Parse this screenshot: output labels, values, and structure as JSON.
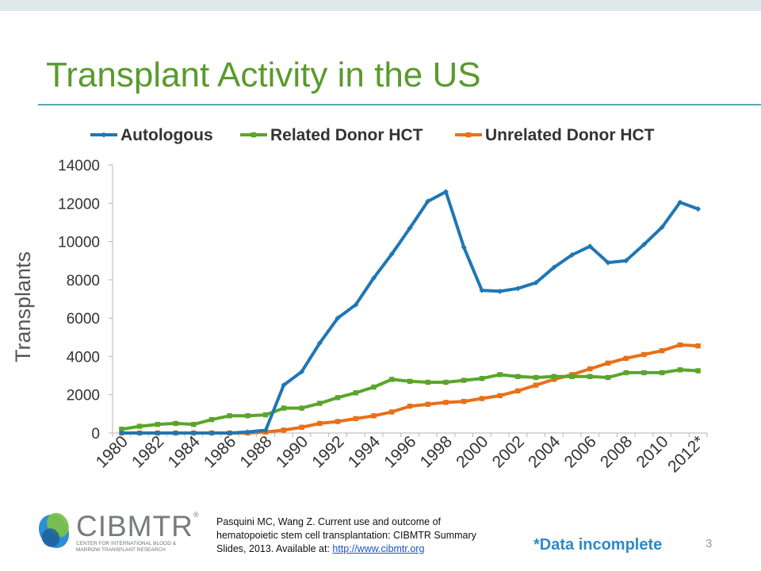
{
  "slide": {
    "title": "Transplant Activity in the US",
    "footnote": "*Data incomplete",
    "page_number": "3",
    "citation_text": "Pasquini MC, Wang Z. Current use and outcome of hematopoietic stem cell transplantation: CIBMTR Summary Slides, 2013.  Available at: ",
    "citation_link": "http://www.cibmtr.org",
    "logo_name": "CIBMTR",
    "logo_trademark": "®",
    "logo_subtitle": "CENTER FOR INTERNATIONAL BLOOD & MARROW TRANSPLANT RESEARCH",
    "colors": {
      "title": "#5a9a2e",
      "rule": "#5aa5ac",
      "footnote": "#2f89c5",
      "link": "#1a55c0"
    }
  },
  "chart_data": {
    "type": "line",
    "title": "",
    "xlabel": "",
    "ylabel": "Transplants",
    "ylim": [
      0,
      14000
    ],
    "yticks": [
      0,
      2000,
      4000,
      6000,
      8000,
      10000,
      12000,
      14000
    ],
    "grid": false,
    "legend_position": "top",
    "x": [
      "1980",
      "1981",
      "1982",
      "1983",
      "1984",
      "1985",
      "1986",
      "1987",
      "1988",
      "1989",
      "1990",
      "1991",
      "1992",
      "1993",
      "1994",
      "1995",
      "1996",
      "1997",
      "1998",
      "1999",
      "2000",
      "2001",
      "2002",
      "2003",
      "2004",
      "2005",
      "2006",
      "2007",
      "2008",
      "2009",
      "2010",
      "2011",
      "2012*"
    ],
    "xtick_labels": [
      "1980",
      "1982",
      "1984",
      "1986",
      "1988",
      "1990",
      "1992",
      "1994",
      "1996",
      "1998",
      "2000",
      "2002",
      "2004",
      "2006",
      "2008",
      "2010",
      "2012*"
    ],
    "series": [
      {
        "name": "Autologous",
        "color": "#1f77b4",
        "values": [
          0,
          0,
          0,
          0,
          0,
          0,
          0,
          50,
          150,
          2500,
          3200,
          4700,
          6000,
          6700,
          8100,
          9350,
          10700,
          12100,
          12600,
          9700,
          7450,
          7400,
          7550,
          7850,
          8650,
          9300,
          9750,
          8900,
          9000,
          9850,
          10750,
          12050,
          11700
        ]
      },
      {
        "name": "Related Donor HCT",
        "color": "#5aa52a",
        "values": [
          200,
          350,
          450,
          500,
          450,
          700,
          900,
          900,
          950,
          1300,
          1300,
          1550,
          1850,
          2100,
          2400,
          2800,
          2700,
          2650,
          2650,
          2750,
          2850,
          3050,
          2950,
          2900,
          2950,
          2950,
          2950,
          2900,
          3150,
          3150,
          3150,
          3300,
          3250
        ]
      },
      {
        "name": "Unrelated Donor HCT",
        "color": "#e8701a",
        "values": [
          0,
          0,
          0,
          0,
          0,
          0,
          0,
          0,
          50,
          150,
          300,
          500,
          600,
          750,
          900,
          1100,
          1400,
          1500,
          1600,
          1650,
          1800,
          1950,
          2200,
          2500,
          2800,
          3050,
          3350,
          3650,
          3900,
          4100,
          4300,
          4600,
          4550
        ]
      }
    ]
  }
}
